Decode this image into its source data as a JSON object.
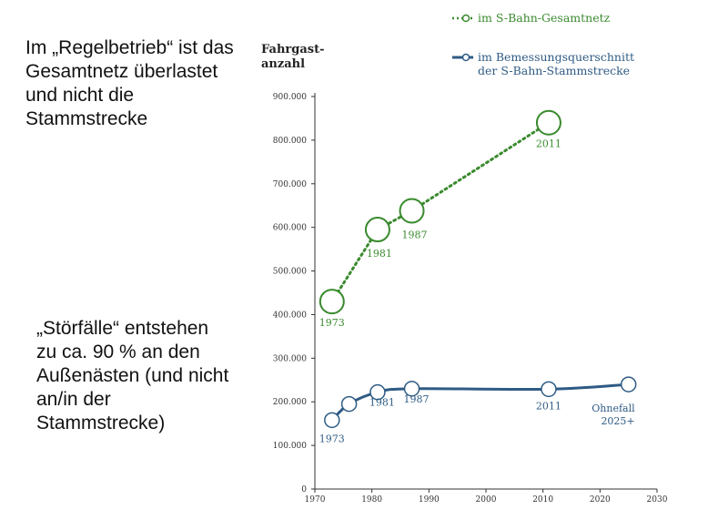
{
  "slide": {
    "text_top": "Im „Regelbetrieb“ ist das Gesamtnetz überlastet und nicht die Stammstrecke",
    "text_bottom": "„Störfälle“ entstehen zu ca. 90 % an den Außenästen (und nicht an/in der Stammstrecke)"
  },
  "chart_data": {
    "type": "line",
    "ylabel": "Fahrgast-\nanzahl",
    "xlim": [
      1970,
      2030
    ],
    "ylim": [
      0,
      900000
    ],
    "x_ticks": [
      1970,
      1980,
      1990,
      2000,
      2010,
      2020,
      2030
    ],
    "y_ticks": [
      {
        "value": 0,
        "label": "0"
      },
      {
        "value": 100000,
        "label": "100.000"
      },
      {
        "value": 200000,
        "label": "200.000"
      },
      {
        "value": 300000,
        "label": "300.000"
      },
      {
        "value": 400000,
        "label": "400.000"
      },
      {
        "value": 500000,
        "label": "500.000"
      },
      {
        "value": 600000,
        "label": "600.000"
      },
      {
        "value": 700000,
        "label": "700.000"
      },
      {
        "value": 800000,
        "label": "800.000"
      },
      {
        "value": 900000,
        "label": "900.000"
      }
    ],
    "legend_position": "top-right",
    "series": [
      {
        "name": "im S-Bahn-Gesamtnetz",
        "color": "#3a8a2e",
        "style": "dotted",
        "points": [
          {
            "x": 1973,
            "y": 430000,
            "label": "1973"
          },
          {
            "x": 1981,
            "y": 595000,
            "label": "1981"
          },
          {
            "x": 1987,
            "y": 638000,
            "label": "1987"
          },
          {
            "x": 2011,
            "y": 840000,
            "label": "2011"
          }
        ]
      },
      {
        "name": "im Bemessungsquerschnitt der S-Bahn-Stammstrecke",
        "legend_lines": [
          "im Bemessungsquerschnitt",
          "der S-Bahn-Stammstrecke"
        ],
        "color": "#2e5b84",
        "style": "solid",
        "points": [
          {
            "x": 1973,
            "y": 158000,
            "label": "1973"
          },
          {
            "x": 1976,
            "y": 195000,
            "label": ""
          },
          {
            "x": 1981,
            "y": 222000,
            "label": "1981"
          },
          {
            "x": 1987,
            "y": 230000,
            "label": "1987"
          },
          {
            "x": 2011,
            "y": 229000,
            "label": "2011"
          },
          {
            "x": 2025,
            "y": 240000,
            "label": "Ohnefall 2025+"
          }
        ]
      }
    ]
  }
}
